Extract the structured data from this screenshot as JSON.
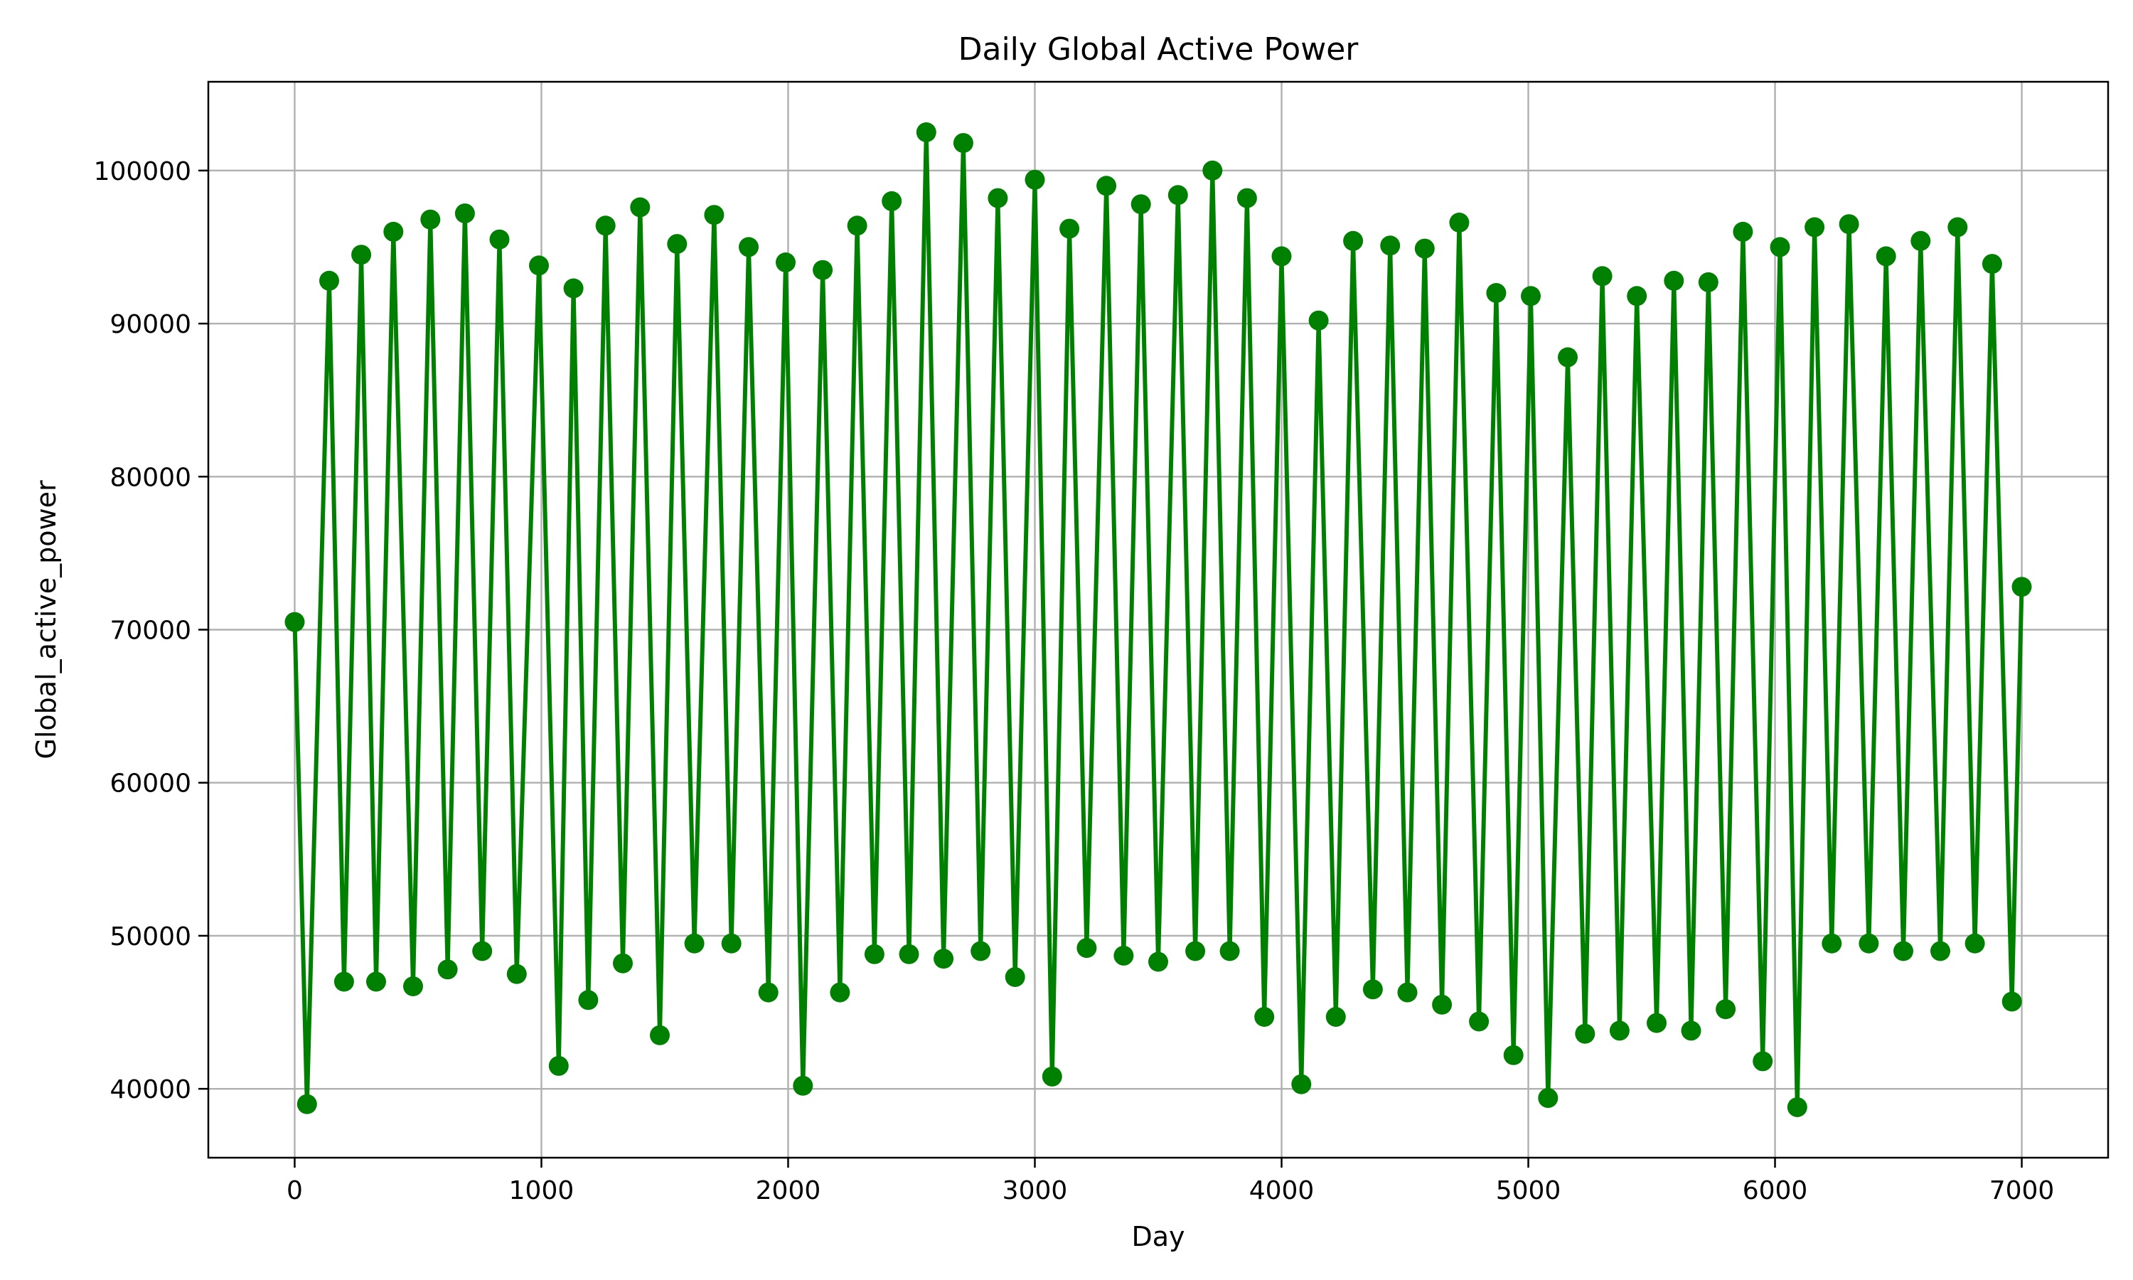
{
  "chart_data": {
    "type": "line",
    "title": "Daily Global Active Power",
    "xlabel": "Day",
    "ylabel": "Global_active_power",
    "xlim": [
      -350,
      7350
    ],
    "ylim": [
      35500,
      105800
    ],
    "xticks": [
      0,
      1000,
      2000,
      3000,
      4000,
      5000,
      6000,
      7000
    ],
    "xtick_labels": [
      "0",
      "1000",
      "2000",
      "3000",
      "4000",
      "5000",
      "6000",
      "7000"
    ],
    "yticks": [
      40000,
      50000,
      60000,
      70000,
      80000,
      90000,
      100000
    ],
    "ytick_labels": [
      "40000",
      "50000",
      "60000",
      "70000",
      "80000",
      "90000",
      "100000"
    ],
    "grid": true,
    "marker": "circle",
    "color": "#008000",
    "series": [
      {
        "x": [
          0,
          50,
          140,
          200,
          270,
          330,
          400,
          480,
          550,
          620,
          690,
          760,
          830,
          900,
          990,
          1070,
          1130,
          1190,
          1260,
          1330,
          1400,
          1480,
          1550,
          1620,
          1700,
          1770,
          1840,
          1920,
          1990,
          2060,
          2140,
          2210,
          2280,
          2350,
          2420,
          2490,
          2560,
          2630,
          2710,
          2780,
          2850,
          2920,
          3000,
          3070,
          3140,
          3210,
          3290,
          3360,
          3430,
          3500,
          3580,
          3650,
          3720,
          3790,
          3860,
          3930,
          4000,
          4080,
          4150,
          4220,
          4290,
          4370,
          4440,
          4510,
          4580,
          4650,
          4720,
          4800,
          4870,
          4940,
          5010,
          5080,
          5160,
          5230,
          5300,
          5370,
          5440,
          5520,
          5590,
          5660,
          5730,
          5800,
          5870,
          5950,
          6020,
          6090,
          6160,
          6230,
          6300,
          6380,
          6450,
          6520,
          6590,
          6670,
          6740,
          6810,
          6880,
          6960,
          7000
        ],
        "y": [
          70500,
          39000,
          92800,
          47000,
          94500,
          47000,
          96000,
          46700,
          96800,
          47800,
          97200,
          49000,
          95500,
          47500,
          93800,
          41500,
          92300,
          45800,
          96400,
          48200,
          97600,
          43500,
          95200,
          49500,
          97100,
          49500,
          95000,
          46300,
          94000,
          40200,
          93500,
          46300,
          96400,
          48800,
          98000,
          48800,
          102500,
          48500,
          101800,
          49000,
          98200,
          47300,
          99400,
          40800,
          96200,
          49200,
          99000,
          48700,
          97800,
          48300,
          98400,
          49000,
          100000,
          49000,
          98200,
          44700,
          94400,
          40300,
          90200,
          44700,
          95400,
          46500,
          95100,
          46300,
          94900,
          45500,
          96600,
          44400,
          92000,
          42200,
          91800,
          39400,
          87800,
          43600,
          93100,
          43800,
          91800,
          44300,
          92800,
          43800,
          92700,
          45200,
          96000,
          41800,
          95000,
          38800,
          96300,
          49500,
          96500,
          49500,
          94400,
          49000,
          95400,
          49000,
          96300,
          49500,
          93900,
          45700,
          72800
        ]
      }
    ]
  }
}
